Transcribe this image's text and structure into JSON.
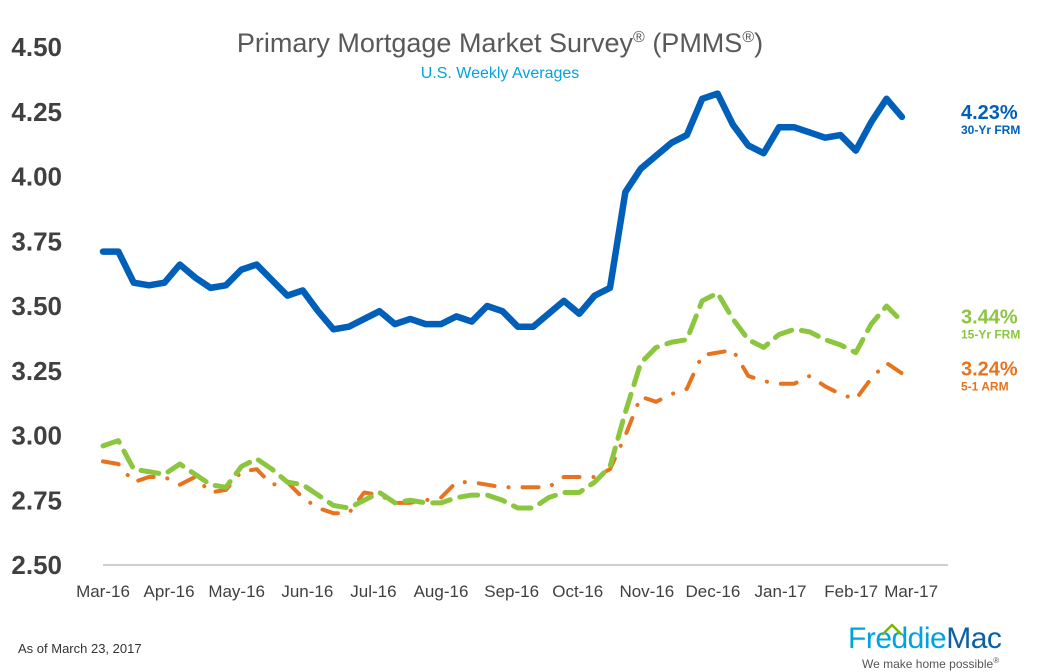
{
  "title_main": "Primary Mortgage Market Survey",
  "title_reg": "®",
  "title_pmms": "(PMMS",
  "title_close": ")",
  "subtitle": "U.S. Weekly Averages",
  "as_of": "As of March 23, 2017",
  "logo": {
    "freddie": "Freddie",
    "mac": "Mac",
    "tagline": "We make home possible",
    "tagline_mark": "®",
    "colors": {
      "freddie": "#00a3e0",
      "mac": "#0b5fa5",
      "house": "#7ab800"
    }
  },
  "chart_data": {
    "type": "line",
    "title": "Primary Mortgage Market Survey® (PMMS®)",
    "subtitle": "U.S. Weekly Averages",
    "ylim": [
      2.5,
      4.5
    ],
    "yticks": [
      "2.50",
      "2.75",
      "3.00",
      "3.25",
      "3.50",
      "3.75",
      "4.00",
      "4.25",
      "4.50"
    ],
    "xlim": [
      0,
      55
    ],
    "xticks": [
      {
        "label": "Mar-16",
        "x": 0
      },
      {
        "label": "Apr-16",
        "x": 4.3
      },
      {
        "label": "May-16",
        "x": 8.7
      },
      {
        "label": "Jun-16",
        "x": 13.3
      },
      {
        "label": "Jul-16",
        "x": 17.6
      },
      {
        "label": "Aug-16",
        "x": 22.0
      },
      {
        "label": "Sep-16",
        "x": 26.6
      },
      {
        "label": "Oct-16",
        "x": 30.9
      },
      {
        "label": "Nov-16",
        "x": 35.4
      },
      {
        "label": "Dec-16",
        "x": 39.7
      },
      {
        "label": "Jan-17",
        "x": 44.1
      },
      {
        "label": "Feb-17",
        "x": 48.7
      },
      {
        "label": "Mar-17",
        "x": 52.6
      }
    ],
    "grid": false,
    "series": [
      {
        "name": "30-Yr FRM",
        "current_label": "4.23%",
        "color": "#0060b9",
        "style": "solid",
        "values": [
          3.71,
          3.71,
          3.59,
          3.58,
          3.59,
          3.66,
          3.61,
          3.57,
          3.58,
          3.64,
          3.66,
          3.6,
          3.54,
          3.56,
          3.48,
          3.41,
          3.42,
          3.45,
          3.48,
          3.43,
          3.45,
          3.43,
          3.43,
          3.46,
          3.44,
          3.5,
          3.48,
          3.42,
          3.42,
          3.47,
          3.52,
          3.47,
          3.54,
          3.57,
          3.94,
          4.03,
          4.08,
          4.13,
          4.16,
          4.3,
          4.32,
          4.2,
          4.12,
          4.09,
          4.19,
          4.19,
          4.17,
          4.15,
          4.16,
          4.1,
          4.21,
          4.3,
          4.23
        ]
      },
      {
        "name": "15-Yr FRM",
        "current_label": "3.44%",
        "color": "#8cc63f",
        "style": "dashed",
        "values": [
          2.96,
          2.98,
          2.87,
          2.86,
          2.85,
          2.89,
          2.85,
          2.81,
          2.8,
          2.88,
          2.91,
          2.87,
          2.82,
          2.81,
          2.77,
          2.73,
          2.72,
          2.75,
          2.78,
          2.74,
          2.75,
          2.74,
          2.74,
          2.76,
          2.77,
          2.77,
          2.75,
          2.72,
          2.72,
          2.76,
          2.78,
          2.78,
          2.82,
          2.88,
          3.09,
          3.28,
          3.34,
          3.36,
          3.37,
          3.52,
          3.55,
          3.45,
          3.37,
          3.34,
          3.39,
          3.41,
          3.4,
          3.37,
          3.35,
          3.32,
          3.43,
          3.5,
          3.44
        ]
      },
      {
        "name": "5-1 ARM",
        "current_label": "3.24%",
        "color": "#e8731e",
        "style": "dashdot",
        "values": [
          2.9,
          2.89,
          2.82,
          2.84,
          2.84,
          2.81,
          2.84,
          2.78,
          2.79,
          2.86,
          2.87,
          2.81,
          2.82,
          2.76,
          2.72,
          2.7,
          2.7,
          2.78,
          2.77,
          2.74,
          2.74,
          2.75,
          2.76,
          2.82,
          2.82,
          2.81,
          2.8,
          2.8,
          2.8,
          2.8,
          2.84,
          2.84,
          2.84,
          2.87,
          3.0,
          3.15,
          3.13,
          3.16,
          3.18,
          3.31,
          3.32,
          3.33,
          3.23,
          3.21,
          3.2,
          3.2,
          3.23,
          3.19,
          3.16,
          3.14,
          3.22,
          3.28,
          3.24
        ]
      }
    ]
  }
}
